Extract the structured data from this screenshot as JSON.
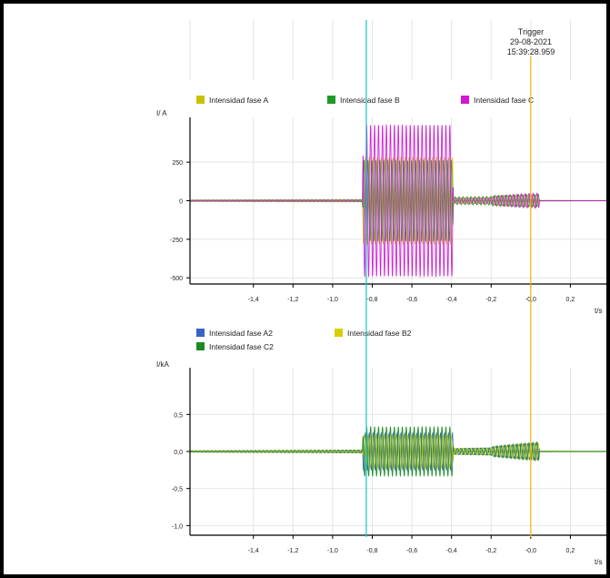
{
  "trigger": {
    "label": "Trigger",
    "date": "29-08-2021",
    "time": "15:39:28.959",
    "color": "#f5b800"
  },
  "cursor_color": "#17c3c9",
  "chart_data": [
    {
      "type": "line",
      "ylabel": "I/ A",
      "xlabel": "t/s",
      "xlim": [
        -1.72,
        0.4
      ],
      "ylim": [
        -540,
        540
      ],
      "yticks": [
        -500,
        -250,
        0,
        250
      ],
      "ytick_labels": [
        "-500",
        "-250",
        "0",
        "250"
      ],
      "xticks": [
        -1.4,
        -1.2,
        -1.0,
        -0.8,
        -0.6,
        -0.4,
        -0.2,
        0.0,
        0.2
      ],
      "xtick_labels": [
        "-1,4",
        "-1,2",
        "-1,0",
        "-0,8",
        "-0,6",
        "-0,4",
        "-0,2",
        "-0,0",
        "0,2"
      ],
      "grid": true,
      "legend_position": "top",
      "cursor_x": -0.83,
      "trigger_x": -0.0,
      "series": [
        {
          "name": "Intensidad fase A",
          "color": "#c9c200",
          "phase": 0,
          "envelope": [
            [
              -1.72,
              5
            ],
            [
              -0.85,
              8
            ],
            [
              -0.845,
              280
            ],
            [
              -0.395,
              280
            ],
            [
              -0.39,
              20
            ],
            [
              -0.2,
              22
            ],
            [
              -0.19,
              30
            ],
            [
              -0.05,
              35
            ],
            [
              0.04,
              38
            ],
            [
              0.045,
              2
            ],
            [
              0.4,
              1
            ]
          ]
        },
        {
          "name": "Intensidad fase B",
          "color": "#1e9a2d",
          "phase": 2.09,
          "envelope": [
            [
              -1.72,
              5
            ],
            [
              -0.85,
              8
            ],
            [
              -0.845,
              260
            ],
            [
              -0.395,
              260
            ],
            [
              -0.39,
              25
            ],
            [
              -0.2,
              28
            ],
            [
              -0.19,
              35
            ],
            [
              -0.05,
              40
            ],
            [
              0.04,
              42
            ],
            [
              0.045,
              2
            ],
            [
              0.4,
              1
            ]
          ]
        },
        {
          "name": "Intensidad fase C",
          "color": "#d017d6",
          "phase": 4.19,
          "envelope": [
            [
              -1.72,
              4
            ],
            [
              -0.85,
              6
            ],
            [
              -0.845,
              490
            ],
            [
              -0.395,
              490
            ],
            [
              -0.39,
              15
            ],
            [
              -0.2,
              20
            ],
            [
              -0.19,
              28
            ],
            [
              -0.05,
              45
            ],
            [
              0.04,
              50
            ],
            [
              0.045,
              2
            ],
            [
              0.4,
              1
            ]
          ]
        }
      ]
    },
    {
      "type": "line",
      "ylabel": "I/kA",
      "xlabel": "t/s",
      "xlim": [
        -1.72,
        0.4
      ],
      "ylim": [
        -1.13,
        1.13
      ],
      "yticks": [
        -1.0,
        -0.5,
        0.0,
        0.5
      ],
      "ytick_labels": [
        "-1,0",
        "-0,5",
        "0,0",
        "0,5"
      ],
      "xticks": [
        -1.4,
        -1.2,
        -1.0,
        -0.8,
        -0.6,
        -0.4,
        -0.2,
        0.0,
        0.2
      ],
      "xtick_labels": [
        "-1,4",
        "-1,2",
        "-1,0",
        "-0,8",
        "-0,6",
        "-0,4",
        "-0,2",
        "-0,0",
        "0,2"
      ],
      "grid": true,
      "legend_position": "top",
      "cursor_x": -0.83,
      "trigger_x": -0.0,
      "series": [
        {
          "name": "Intensidad fase A2",
          "color": "#3a63c8",
          "phase": 0,
          "envelope": [
            [
              -1.72,
              0.01
            ],
            [
              -0.85,
              0.02
            ],
            [
              -0.845,
              0.25
            ],
            [
              -0.395,
              0.25
            ],
            [
              -0.39,
              0.04
            ],
            [
              -0.2,
              0.05
            ],
            [
              -0.19,
              0.07
            ],
            [
              -0.05,
              0.1
            ],
            [
              0.04,
              0.12
            ],
            [
              0.045,
              0.005
            ],
            [
              0.4,
              0.003
            ]
          ]
        },
        {
          "name": "Intensidad fase B2",
          "color": "#d6cf00",
          "phase": 2.09,
          "envelope": [
            [
              -1.72,
              0.01
            ],
            [
              -0.85,
              0.02
            ],
            [
              -0.845,
              0.22
            ],
            [
              -0.395,
              0.22
            ],
            [
              -0.39,
              0.04
            ],
            [
              -0.2,
              0.05
            ],
            [
              -0.19,
              0.06
            ],
            [
              -0.05,
              0.1
            ],
            [
              0.04,
              0.11
            ],
            [
              0.045,
              0.005
            ],
            [
              0.4,
              0.003
            ]
          ]
        },
        {
          "name": "Intensidad fase C2",
          "color": "#1e8a24",
          "phase": 4.19,
          "envelope": [
            [
              -1.72,
              0.01
            ],
            [
              -0.85,
              0.02
            ],
            [
              -0.845,
              0.33
            ],
            [
              -0.395,
              0.33
            ],
            [
              -0.39,
              0.04
            ],
            [
              -0.2,
              0.05
            ],
            [
              -0.19,
              0.07
            ],
            [
              -0.05,
              0.11
            ],
            [
              0.04,
              0.13
            ],
            [
              0.045,
              0.005
            ],
            [
              0.4,
              0.003
            ]
          ]
        }
      ]
    }
  ]
}
